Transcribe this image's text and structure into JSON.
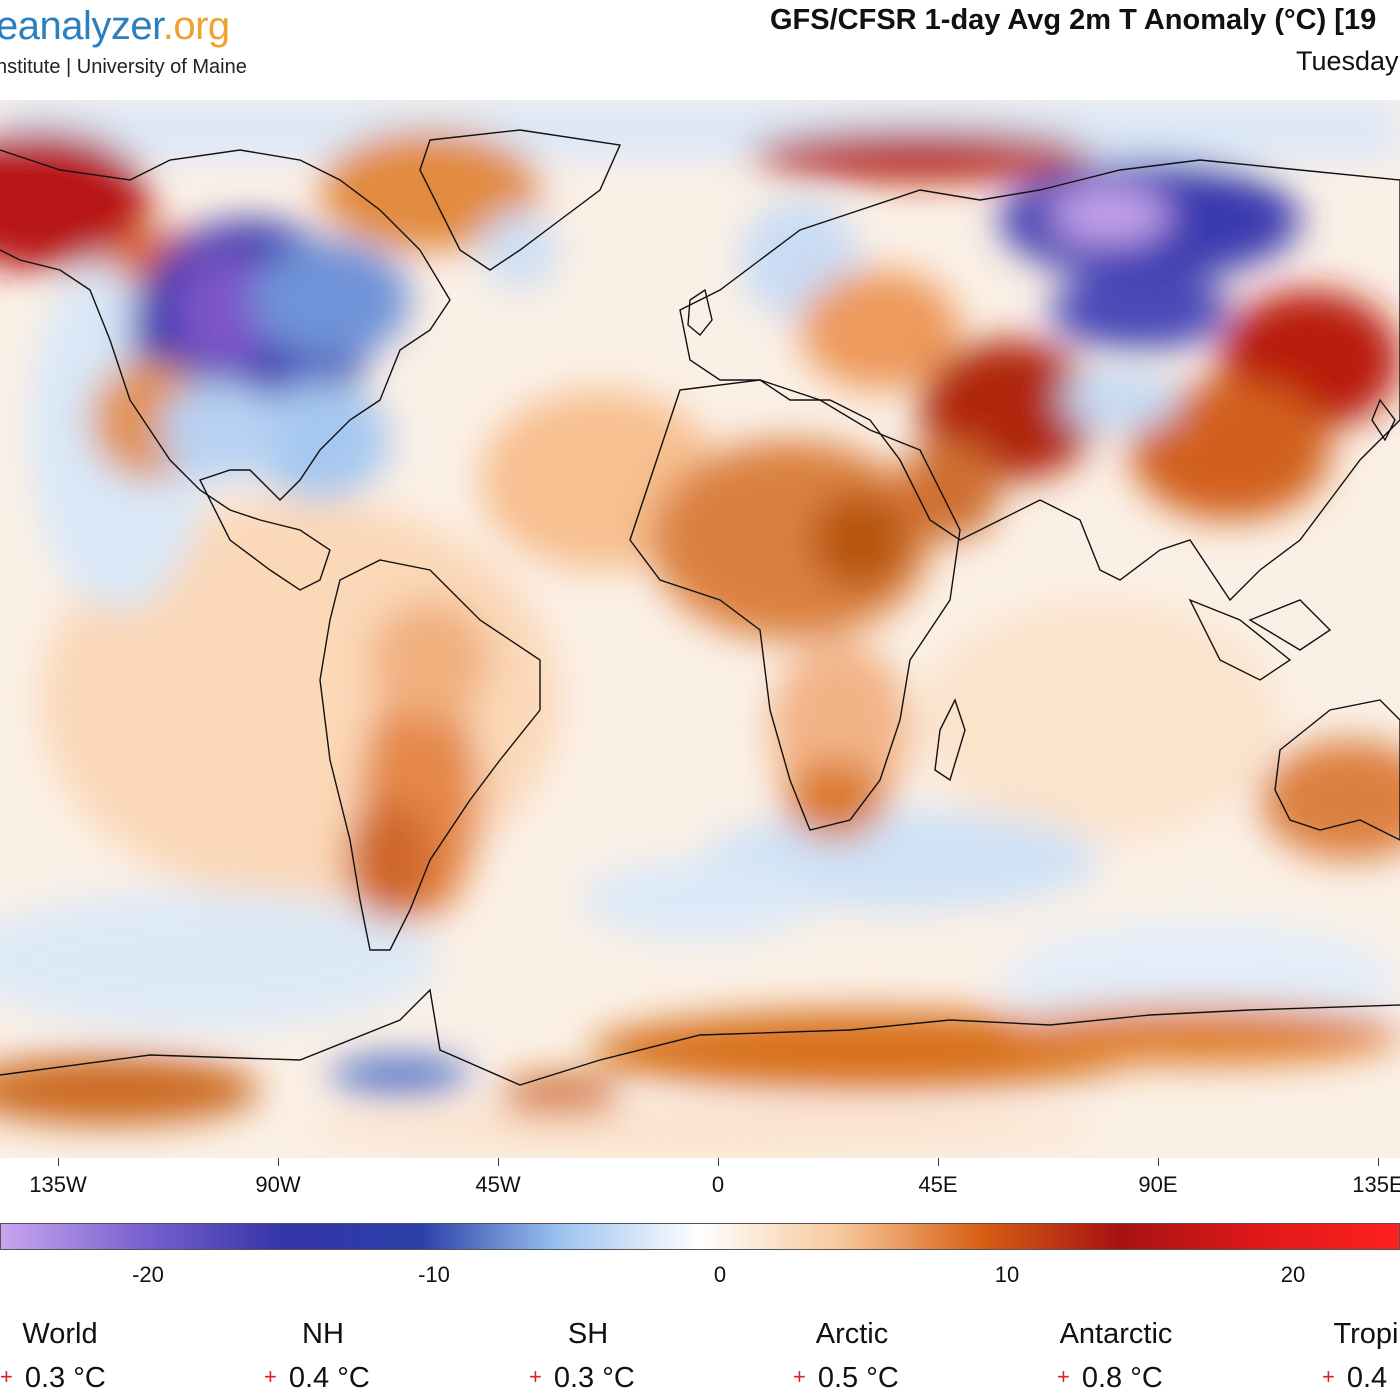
{
  "header": {
    "logo_main": "eanalyzer",
    "logo_suffix": ".org",
    "logo_subtitle": "nstitute | University of Maine",
    "title": "GFS/CFSR 1-day Avg 2m T Anomaly (°C) [19",
    "date": "Tuesday"
  },
  "map": {
    "longitude_labels": [
      "135W",
      "90W",
      "45W",
      "0",
      "45E",
      "90E",
      "135E"
    ],
    "colors": {
      "strong_cold": "#c7a5ee",
      "cold": "#3535a8",
      "cool": "#9cc4f0",
      "neutral": "#ffffff",
      "warm": "#f7c89c",
      "hot": "#d86014",
      "very_hot": "#a51212"
    }
  },
  "colorbar": {
    "labels": [
      "-20",
      "-10",
      "0",
      "10",
      "20"
    ]
  },
  "regions": [
    {
      "name": "World",
      "sign": "+",
      "value": "0.3 °C"
    },
    {
      "name": "NH",
      "sign": "+",
      "value": "0.4 °C"
    },
    {
      "name": "SH",
      "sign": "+",
      "value": "0.3 °C"
    },
    {
      "name": "Arctic",
      "sign": "+",
      "value": "0.5 °C"
    },
    {
      "name": "Antarctic",
      "sign": "+",
      "value": "0.8 °C"
    },
    {
      "name": "Tropi",
      "sign": "+",
      "value": "0.4"
    }
  ]
}
